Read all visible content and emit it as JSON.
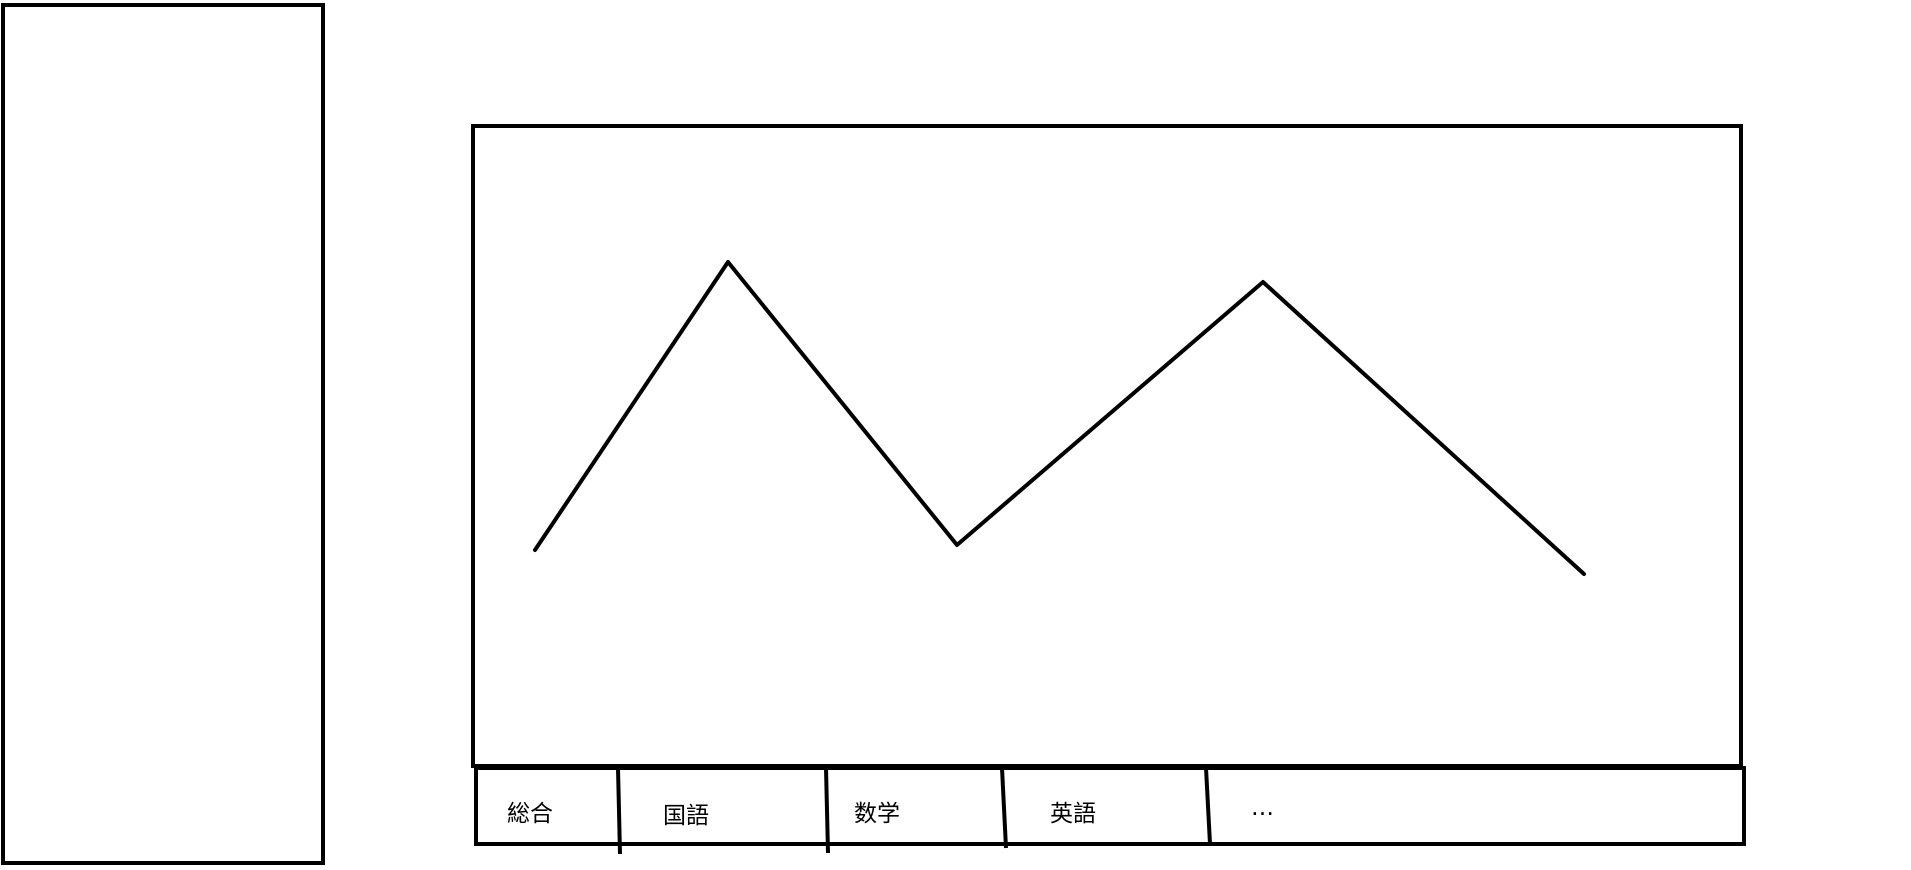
{
  "colors": {
    "stroke": "#000000",
    "background": "#ffffff"
  },
  "tabs": [
    {
      "label": "総合"
    },
    {
      "label": "国語"
    },
    {
      "label": "数学"
    },
    {
      "label": "英語"
    },
    {
      "label": "…"
    }
  ]
}
